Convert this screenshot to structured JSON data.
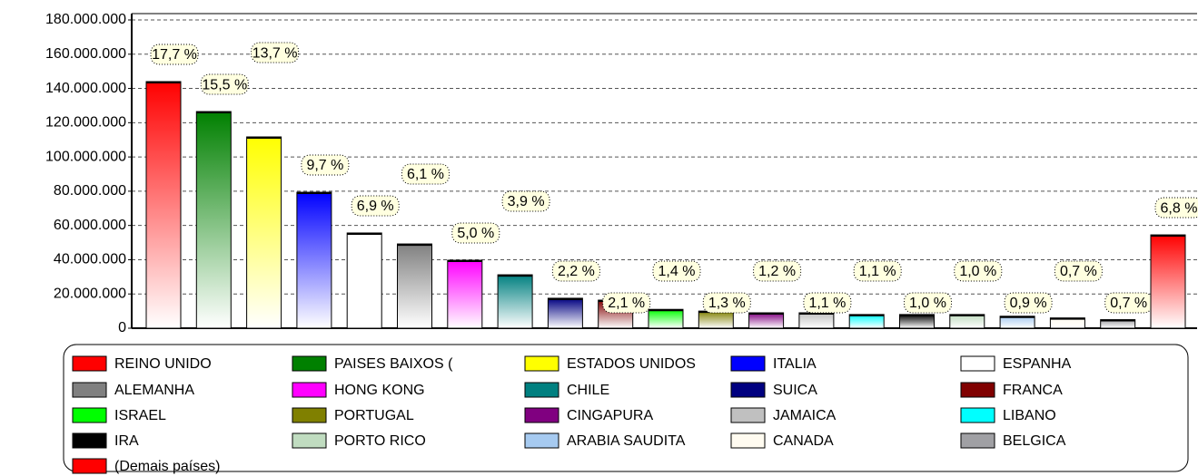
{
  "chart_data": {
    "type": "bar",
    "categories": [
      "REINO UNIDO",
      "PAISES BAIXOS (",
      "ESTADOS UNIDOS",
      "ITALIA",
      "ESPANHA",
      "ALEMANHA",
      "HONG KONG",
      "CHILE",
      "SUICA",
      "FRANCA",
      "ISRAEL",
      "PORTUGAL",
      "CINGAPURA",
      "JAMAICA",
      "LIBANO",
      "IRA",
      "PORTO RICO",
      "ARABIA SAUDITA",
      "CANADA",
      "BELGICA",
      "(Demais países)"
    ],
    "values": [
      144000000,
      126500000,
      111700000,
      79400000,
      55600000,
      49200000,
      39700000,
      31200000,
      17500000,
      16400000,
      11000000,
      10000000,
      9000000,
      9000000,
      8000000,
      8000000,
      8000000,
      7000000,
      6000000,
      5000000,
      54500000
    ],
    "percents": [
      17.7,
      15.5,
      13.7,
      9.7,
      6.9,
      6.1,
      5.0,
      3.9,
      2.2,
      2.1,
      1.4,
      1.3,
      1.2,
      1.1,
      1.1,
      1.0,
      1.0,
      0.9,
      0.7,
      0.7,
      6.8
    ],
    "percent_labels": [
      "17,7 %",
      "15,5 %",
      "13,7 %",
      "9,7 %",
      "6,9 %",
      "6,1 %",
      "5,0 %",
      "3,9 %",
      "2,2 %",
      "2,1 %",
      "1,4 %",
      "1,3 %",
      "1,2 %",
      "1,1 %",
      "1,1 %",
      "1,0 %",
      "1,0 %",
      "0,9 %",
      "0,7 %",
      "0,7 %",
      "6,8 %"
    ],
    "colors": [
      "#ff0000",
      "#008000",
      "#ffff00",
      "#0000ff",
      "#ffffff",
      "#808080",
      "#ff00ff",
      "#008080",
      "#000080",
      "#800000",
      "#00ff00",
      "#808000",
      "#800080",
      "#c0c0c0",
      "#00ffff",
      "#000000",
      "#c0dcc0",
      "#a6caf0",
      "#fffbf0",
      "#a0a0a4",
      "#ff0000"
    ],
    "ylim": [
      0,
      180000000
    ],
    "yticks": [
      0,
      {
        "value": 20000000,
        "label": "20.000.000"
      },
      {
        "value": 40000000,
        "label": "40.000.000"
      },
      {
        "value": 60000000,
        "label": "60.000.000"
      },
      {
        "value": 80000000,
        "label": "80.000.000"
      },
      {
        "value": 100000000,
        "label": "100.000.000"
      },
      {
        "value": 120000000,
        "label": "120.000.000"
      },
      {
        "value": 140000000,
        "label": "140.000.000"
      },
      {
        "value": 160000000,
        "label": "160.000.000"
      },
      {
        "value": 180000000,
        "label": "180.000.000"
      }
    ],
    "grid": true
  }
}
